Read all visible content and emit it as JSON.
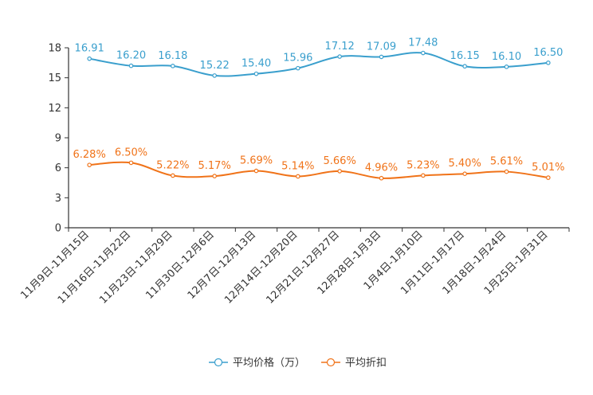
{
  "chart_data": {
    "type": "line",
    "title": "",
    "xlabel": "",
    "ylabel": "",
    "ylim": [
      0,
      18
    ],
    "yticks": [
      0,
      3,
      6,
      9,
      12,
      15,
      18
    ],
    "grid": false,
    "legend_position": "bottom-center",
    "categories": [
      "11月9日-11月15日",
      "11月16日-11月22日",
      "11月23日-11月29日",
      "11月30日-12月6日",
      "12月7日-12月13日",
      "12月14日-12月20日",
      "12月21日-12月27日",
      "12月28日-1月3日",
      "1月4日-1月10日",
      "1月11日-1月17日",
      "1月18日-1月24日",
      "1月25日-1月31日"
    ],
    "series": [
      {
        "name": "平均价格（万）",
        "color": "#3a9fcd",
        "values": [
          16.91,
          16.2,
          16.18,
          15.22,
          15.4,
          15.96,
          17.12,
          17.09,
          17.48,
          16.15,
          16.1,
          16.5
        ],
        "labels": [
          "16.91",
          "16.20",
          "16.18",
          "15.22",
          "15.40",
          "15.96",
          "17.12",
          "17.09",
          "17.48",
          "16.15",
          "16.10",
          "16.50"
        ]
      },
      {
        "name": "平均折扣",
        "color": "#f07319",
        "values": [
          6.28,
          6.5,
          5.22,
          5.17,
          5.69,
          5.14,
          5.66,
          4.96,
          5.23,
          5.4,
          5.61,
          5.01
        ],
        "labels": [
          "6.28%",
          "6.50%",
          "5.22%",
          "5.17%",
          "5.69%",
          "5.14%",
          "5.66%",
          "4.96%",
          "5.23%",
          "5.40%",
          "5.61%",
          "5.01%"
        ]
      }
    ]
  }
}
